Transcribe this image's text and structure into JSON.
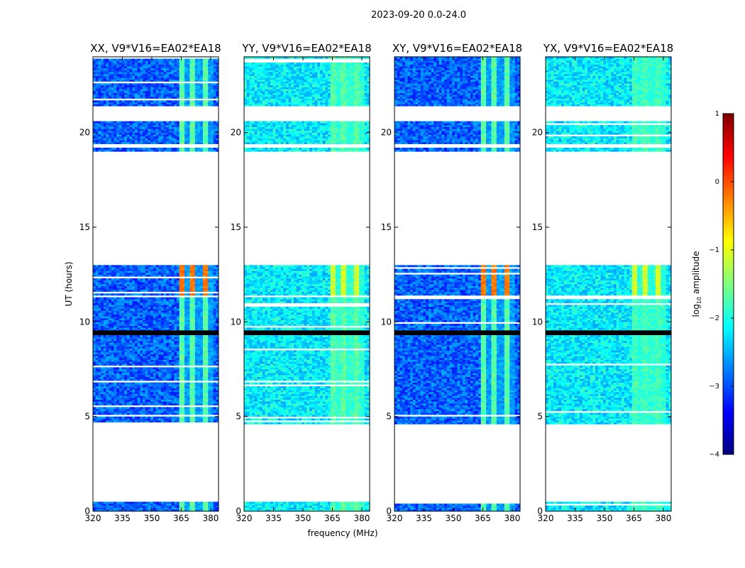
{
  "suptitle": "2023-09-20 0.0-24.0",
  "xlabel": "frequency (MHz)",
  "ylabel": "UT (hours)",
  "colorbar": {
    "label": "log10 amplitude",
    "label_base": "log",
    "label_sub": "10",
    "label_rest": " amplitude",
    "min": -4,
    "max": 1,
    "ticks": [
      1,
      0,
      -1,
      -2,
      -3,
      -4
    ],
    "tick_labels": [
      "1",
      "0",
      "−1",
      "−2",
      "−3",
      "−4"
    ]
  },
  "chart_data": {
    "type": "heatmap",
    "title": "2023-09-20 0.0-24.0",
    "xlabel": "frequency (MHz)",
    "ylabel": "UT (hours)",
    "xlim": [
      320,
      384
    ],
    "ylim": [
      0,
      24
    ],
    "xticks": [
      320,
      335,
      350,
      365,
      380
    ],
    "xtick_labels": [
      "320",
      "335",
      "350",
      "365",
      "380"
    ],
    "yticks": [
      0,
      5,
      10,
      15,
      20
    ],
    "ytick_labels": [
      "0",
      "5",
      "10",
      "15",
      "20"
    ],
    "colormap": "jet",
    "color_range": [
      -4,
      1
    ],
    "data_ut_ranges": [
      [
        0.0,
        0.5
      ],
      [
        4.6,
        11.3
      ],
      [
        11.4,
        13.0
      ],
      [
        19.0,
        19.2
      ],
      [
        19.4,
        20.6
      ],
      [
        21.4,
        24.0
      ]
    ],
    "rfi_band_mhz": [
      363,
      381
    ],
    "panels": [
      {
        "title": "XX, V9*V16=EA02*EA18",
        "polarization": "XX",
        "background_level": -2.9,
        "rfi_level": -1.7,
        "rfi_peak_level": -0.2
      },
      {
        "title": "YY, V9*V16=EA02*EA18",
        "polarization": "YY",
        "background_level": -2.2,
        "rfi_level": -1.7,
        "rfi_peak_level": -1.1
      },
      {
        "title": "XY, V9*V16=EA02*EA18",
        "polarization": "XY",
        "background_level": -2.9,
        "rfi_level": -1.7,
        "rfi_peak_level": -0.2
      },
      {
        "title": "YX, V9*V16=EA02*EA18",
        "polarization": "YX",
        "background_level": -2.2,
        "rfi_level": -1.8,
        "rfi_peak_level": -1.1
      }
    ]
  }
}
